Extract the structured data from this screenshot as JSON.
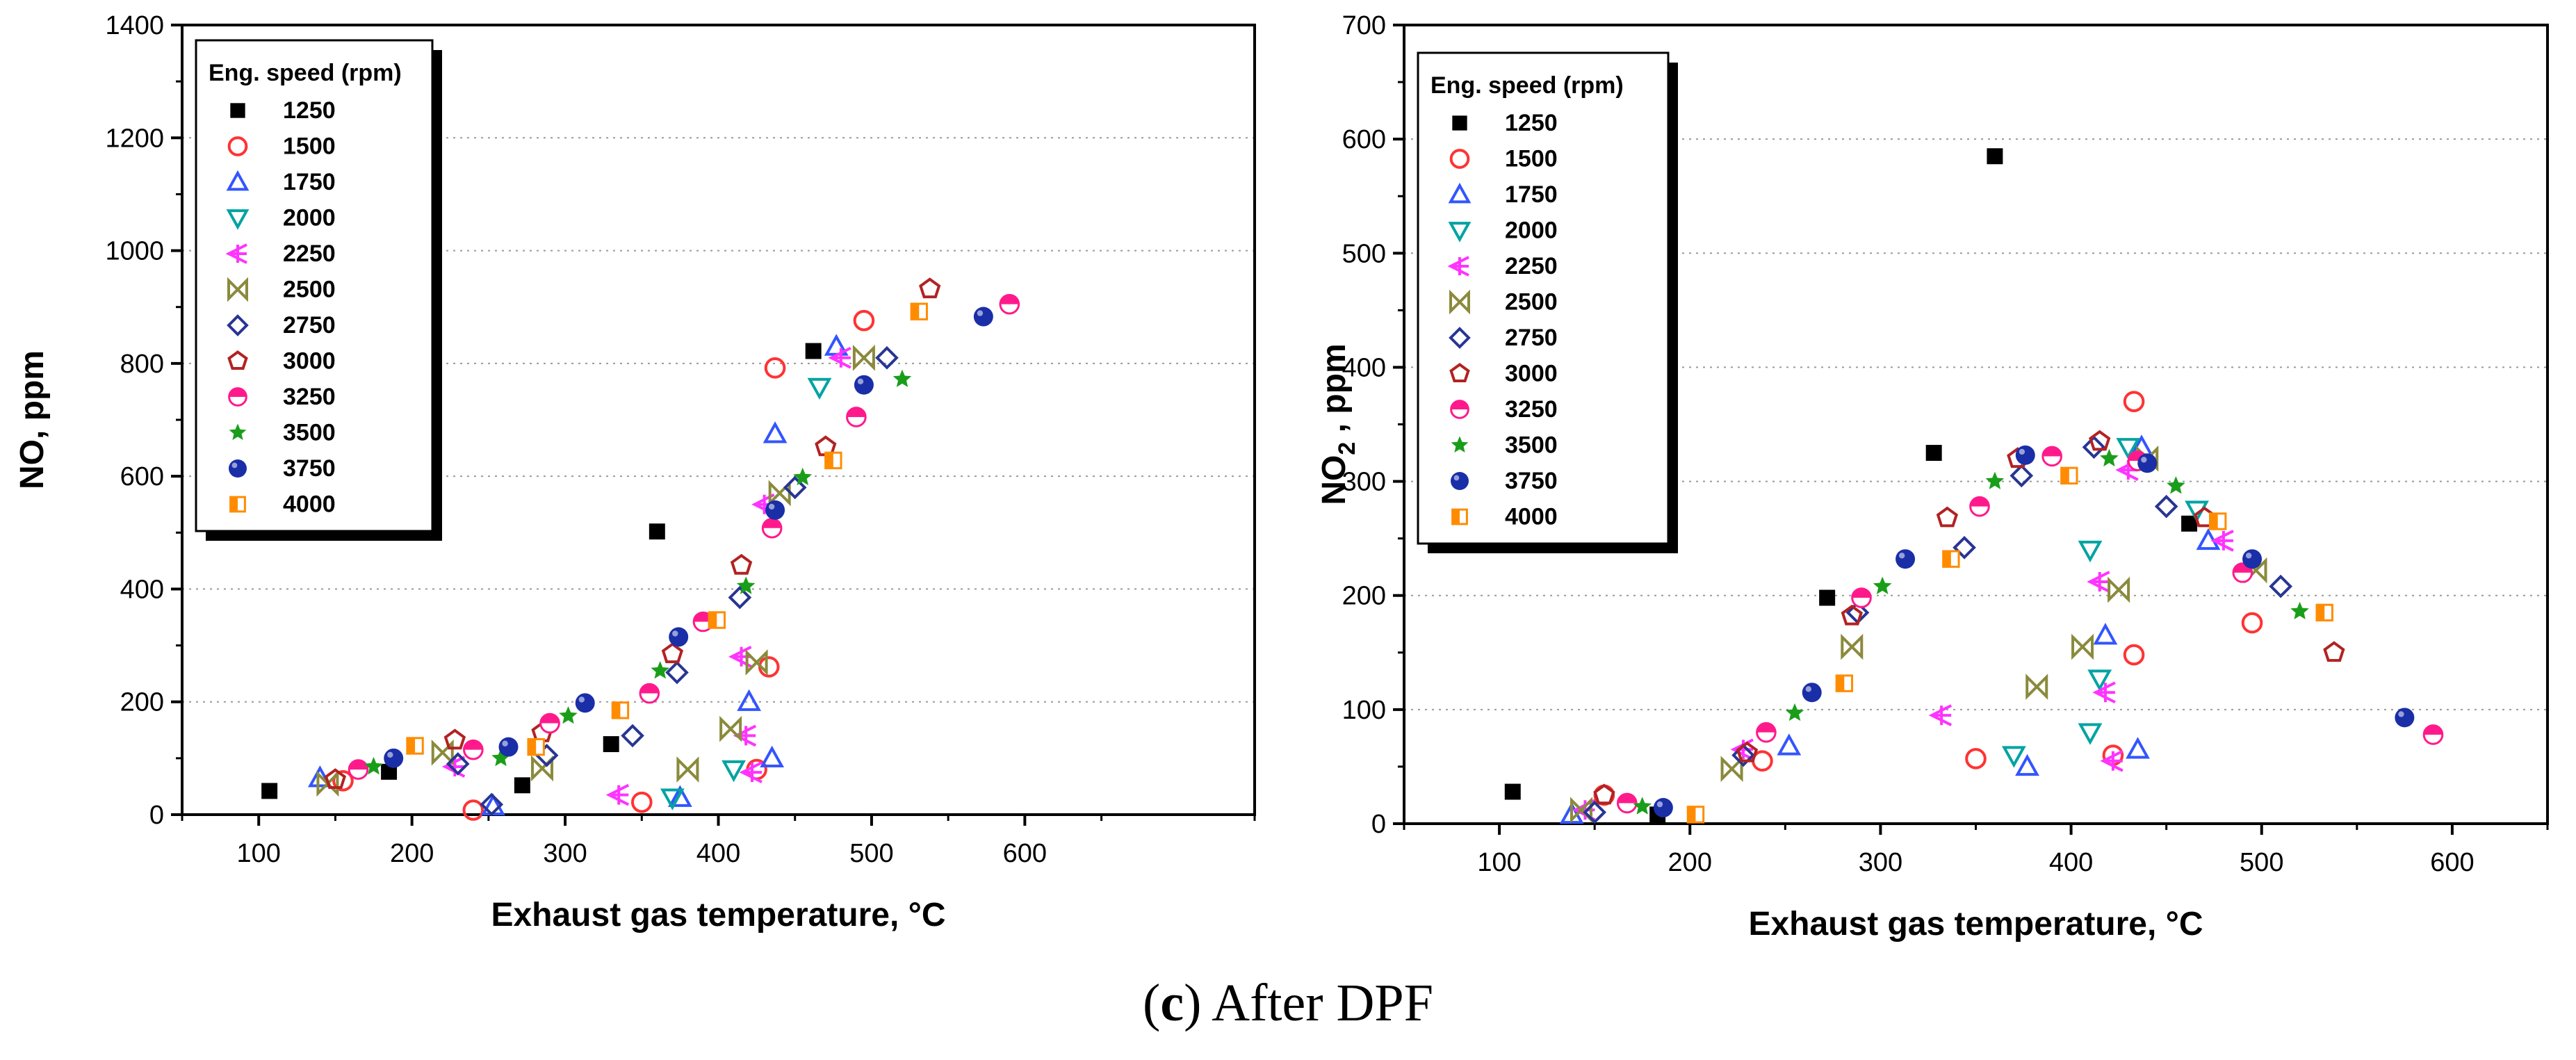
{
  "chart_data": [
    {
      "type": "scatter",
      "title": "",
      "xlabel": "Exhaust gas temperature, °C",
      "ylabel": "NO, ppm",
      "xlim": [
        50,
        750
      ],
      "ylim": [
        0,
        1400
      ],
      "xticks": [
        "100",
        "200",
        "300",
        "400",
        "500",
        "600"
      ],
      "yticks": [
        "0",
        "200",
        "400",
        "600",
        "800",
        "1000",
        "1200",
        "1400"
      ],
      "grid": "horizontal dotted",
      "legend_title": "Eng. speed (rpm)",
      "legend_position": "top-left",
      "series": [
        {
          "name": "1250",
          "marker": "square",
          "color": "#000000",
          "filled": true,
          "points": [
            [
              107,
              42
            ],
            [
              185,
              76
            ],
            [
              272,
              52
            ],
            [
              330,
              125
            ],
            [
              360,
              502
            ],
            [
              462,
              822
            ]
          ]
        },
        {
          "name": "1500",
          "marker": "circle",
          "color": "#ff3333",
          "filled": false,
          "points": [
            [
              155,
              60
            ],
            [
              240,
              8
            ],
            [
              350,
              22
            ],
            [
              425,
              80
            ],
            [
              433,
              262
            ],
            [
              437,
              792
            ],
            [
              495,
              876
            ]
          ]
        },
        {
          "name": "1750",
          "marker": "triangle-up",
          "color": "#3355ff",
          "filled": false,
          "points": [
            [
              140,
              65
            ],
            [
              253,
              15
            ],
            [
              375,
              30
            ],
            [
              420,
              200
            ],
            [
              435,
              100
            ],
            [
              437,
              675
            ],
            [
              477,
              830
            ]
          ]
        },
        {
          "name": "2000",
          "marker": "triangle-down",
          "color": "#00a3a3",
          "filled": false,
          "points": [
            [
              370,
              30
            ],
            [
              410,
              80
            ],
            [
              466,
              758
            ]
          ]
        },
        {
          "name": "2250",
          "marker": "arrow-left",
          "color": "#ff33ff",
          "filled": false,
          "points": [
            [
              228,
              85
            ],
            [
              335,
              35
            ],
            [
              415,
              280
            ],
            [
              418,
              140
            ],
            [
              422,
              75
            ],
            [
              430,
              550
            ],
            [
              480,
              810
            ]
          ]
        },
        {
          "name": "2500",
          "marker": "bowtie",
          "color": "#8a8a3c",
          "filled": false,
          "points": [
            [
              145,
              55
            ],
            [
              220,
              110
            ],
            [
              285,
              82
            ],
            [
              380,
              80
            ],
            [
              408,
              152
            ],
            [
              425,
              270
            ],
            [
              440,
              570
            ],
            [
              495,
              810
            ]
          ]
        },
        {
          "name": "2750",
          "marker": "diamond",
          "color": "#283593",
          "filled": false,
          "points": [
            [
              230,
              90
            ],
            [
              252,
              18
            ],
            [
              288,
              105
            ],
            [
              344,
              140
            ],
            [
              373,
              252
            ],
            [
              414,
              385
            ],
            [
              450,
              580
            ],
            [
              510,
              810
            ]
          ]
        },
        {
          "name": "3000",
          "marker": "pentagon",
          "color": "#b22222",
          "filled": false,
          "points": [
            [
              150,
              62
            ],
            [
              228,
              132
            ],
            [
              285,
              145
            ],
            [
              370,
              285
            ],
            [
              415,
              442
            ],
            [
              470,
              652
            ],
            [
              538,
              932
            ]
          ]
        },
        {
          "name": "3250",
          "marker": "half-circle",
          "color": "#ff1a8c",
          "filled": true,
          "points": [
            [
              165,
              80
            ],
            [
              240,
              115
            ],
            [
              290,
              162
            ],
            [
              355,
              215
            ],
            [
              390,
              342
            ],
            [
              435,
              508
            ],
            [
              490,
              705
            ],
            [
              590,
              905
            ]
          ]
        },
        {
          "name": "3500",
          "marker": "star",
          "color": "#1a9e1a",
          "filled": true,
          "points": [
            [
              175,
              85
            ],
            [
              258,
              100
            ],
            [
              302,
              175
            ],
            [
              362,
              255
            ],
            [
              418,
              405
            ],
            [
              455,
              598
            ],
            [
              520,
              772
            ]
          ]
        },
        {
          "name": "3750",
          "marker": "sphere",
          "color": "#1a2ea8",
          "filled": true,
          "points": [
            [
              188,
              100
            ],
            [
              263,
              120
            ],
            [
              313,
              198
            ],
            [
              374,
              315
            ],
            [
              437,
              540
            ],
            [
              495,
              762
            ],
            [
              573,
              883
            ]
          ]
        },
        {
          "name": "4000",
          "marker": "half-square",
          "color": "#ff8c00",
          "filled": true,
          "points": [
            [
              202,
              122
            ],
            [
              281,
              120
            ],
            [
              336,
              185
            ],
            [
              399,
              345
            ],
            [
              475,
              628
            ],
            [
              531,
              892
            ]
          ]
        }
      ]
    },
    {
      "type": "scatter",
      "title": "",
      "xlabel": "Exhaust gas temperature, °C",
      "ylabel": "NO",
      "ylabel_subscript": "2",
      "ylabel_suffix": " , ppm",
      "xlim": [
        50,
        650
      ],
      "ylim": [
        0,
        700
      ],
      "xticks": [
        "100",
        "200",
        "300",
        "400",
        "500",
        "600"
      ],
      "yticks": [
        "0",
        "100",
        "200",
        "300",
        "400",
        "500",
        "600",
        "700"
      ],
      "grid": "horizontal dotted",
      "legend_title": "Eng. speed (rpm)",
      "legend_position": "top-left",
      "series": [
        {
          "name": "1250",
          "marker": "square",
          "color": "#000000",
          "filled": true,
          "points": [
            [
              107,
              28
            ],
            [
              183,
              8
            ],
            [
              272,
              198
            ],
            [
              328,
              325
            ],
            [
              360,
              585
            ],
            [
              462,
              263
            ]
          ]
        },
        {
          "name": "1500",
          "marker": "circle",
          "color": "#ff3333",
          "filled": false,
          "points": [
            [
              155,
              25
            ],
            [
              238,
              55
            ],
            [
              350,
              57
            ],
            [
              422,
              60
            ],
            [
              433,
              148
            ],
            [
              433,
              370
            ],
            [
              495,
              176
            ]
          ]
        },
        {
          "name": "1750",
          "marker": "triangle-up",
          "color": "#3355ff",
          "filled": false,
          "points": [
            [
              138,
              8
            ],
            [
              252,
              68
            ],
            [
              377,
              50
            ],
            [
              418,
              165
            ],
            [
              435,
              65
            ],
            [
              437,
              330
            ],
            [
              472,
              248
            ]
          ]
        },
        {
          "name": "2000",
          "marker": "triangle-down",
          "color": "#00a3a3",
          "filled": false,
          "points": [
            [
              370,
              60
            ],
            [
              410,
              80
            ],
            [
              410,
              240
            ],
            [
              415,
              127
            ],
            [
              430,
              330
            ],
            [
              466,
              275
            ]
          ]
        },
        {
          "name": "2250",
          "marker": "arrow-left",
          "color": "#ff33ff",
          "filled": false,
          "points": [
            [
              145,
              12
            ],
            [
              228,
              65
            ],
            [
              332,
              95
            ],
            [
              415,
              212
            ],
            [
              418,
              115
            ],
            [
              422,
              55
            ],
            [
              430,
              310
            ],
            [
              480,
              248
            ]
          ]
        },
        {
          "name": "2500",
          "marker": "bowtie",
          "color": "#8a8a3c",
          "filled": false,
          "points": [
            [
              143,
              12
            ],
            [
              222,
              48
            ],
            [
              285,
              155
            ],
            [
              382,
              120
            ],
            [
              406,
              155
            ],
            [
              425,
              205
            ],
            [
              440,
              320
            ],
            [
              497,
              222
            ]
          ]
        },
        {
          "name": "2750",
          "marker": "diamond",
          "color": "#283593",
          "filled": false,
          "points": [
            [
              150,
              10
            ],
            [
              228,
              60
            ],
            [
              288,
              185
            ],
            [
              344,
              242
            ],
            [
              374,
              305
            ],
            [
              412,
              330
            ],
            [
              450,
              278
            ],
            [
              510,
              208
            ]
          ]
        },
        {
          "name": "3000",
          "marker": "pentagon",
          "color": "#b22222",
          "filled": false,
          "points": [
            [
              155,
              25
            ],
            [
              230,
              62
            ],
            [
              285,
              182
            ],
            [
              335,
              268
            ],
            [
              372,
              320
            ],
            [
              415,
              335
            ],
            [
              470,
              268
            ],
            [
              538,
              150
            ]
          ]
        },
        {
          "name": "3250",
          "marker": "half-circle",
          "color": "#ff1a8c",
          "filled": true,
          "points": [
            [
              167,
              18
            ],
            [
              240,
              80
            ],
            [
              290,
              198
            ],
            [
              352,
              278
            ],
            [
              390,
              322
            ],
            [
              435,
              318
            ],
            [
              490,
              220
            ],
            [
              590,
              78
            ]
          ]
        },
        {
          "name": "3500",
          "marker": "star",
          "color": "#1a9e1a",
          "filled": true,
          "points": [
            [
              175,
              15
            ],
            [
              255,
              97
            ],
            [
              301,
              208
            ],
            [
              360,
              300
            ],
            [
              420,
              320
            ],
            [
              455,
              296
            ],
            [
              520,
              186
            ]
          ]
        },
        {
          "name": "3750",
          "marker": "sphere",
          "color": "#1a2ea8",
          "filled": true,
          "points": [
            [
              186,
              14
            ],
            [
              264,
              115
            ],
            [
              313,
              232
            ],
            [
              376,
              323
            ],
            [
              440,
              316
            ],
            [
              495,
              232
            ],
            [
              575,
              93
            ]
          ]
        },
        {
          "name": "4000",
          "marker": "half-square",
          "color": "#ff8c00",
          "filled": true,
          "points": [
            [
              203,
              8
            ],
            [
              281,
              123
            ],
            [
              337,
              232
            ],
            [
              399,
              305
            ],
            [
              477,
              265
            ],
            [
              533,
              185
            ]
          ]
        }
      ]
    }
  ],
  "caption": {
    "label": "c",
    "text": " After DPF"
  }
}
